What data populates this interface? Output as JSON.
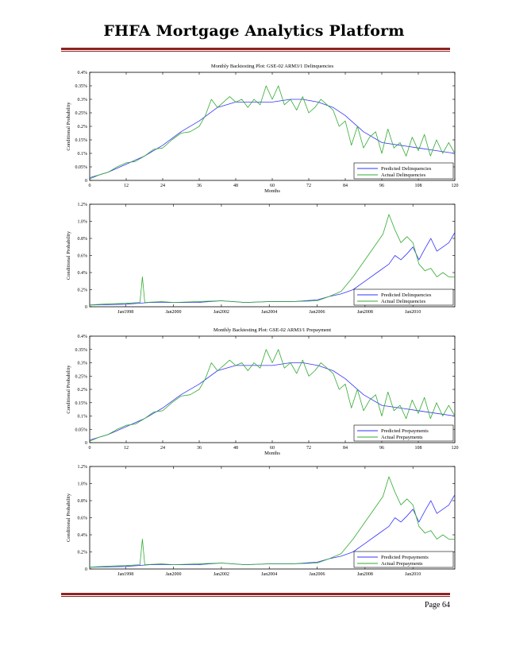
{
  "page": {
    "title": "FHFA Mortgage Analytics Platform",
    "page_number": "Page 64",
    "rule_color": "#8e2323"
  },
  "chart_data": [
    {
      "type": "line",
      "title": "Monthly Backtesting Plot: GSE-02 ARM3/1 Delinquencies",
      "xlabel": "Months",
      "ylabel": "Conditional Probability",
      "xlim": [
        0,
        120
      ],
      "ylim": [
        0,
        0.4
      ],
      "xticks": [
        0,
        12,
        24,
        36,
        48,
        60,
        72,
        84,
        96,
        108,
        120
      ],
      "yticks": [
        0,
        0.05,
        0.1,
        0.15,
        0.2,
        0.25,
        0.3,
        0.35,
        0.4
      ],
      "ytick_labels": [
        "0",
        "0.05%",
        "0.1%",
        "0.15%",
        "0.2%",
        "0.25%",
        "0.3%",
        "0.35%",
        "0.4%"
      ],
      "legend_position": "bottom-right",
      "series": [
        {
          "name": "Predicted Delinquencies",
          "color": "#3333ff",
          "x": [
            0,
            6,
            12,
            18,
            24,
            30,
            36,
            42,
            48,
            54,
            60,
            66,
            70,
            75,
            80,
            84,
            90,
            96,
            102,
            108,
            114,
            120
          ],
          "values": [
            0.01,
            0.03,
            0.06,
            0.09,
            0.13,
            0.18,
            0.22,
            0.27,
            0.29,
            0.29,
            0.29,
            0.3,
            0.3,
            0.29,
            0.27,
            0.24,
            0.18,
            0.14,
            0.13,
            0.12,
            0.11,
            0.1
          ]
        },
        {
          "name": "Actual Delinquencies",
          "color": "#33aa33",
          "x": [
            0,
            3,
            6,
            9,
            12,
            15,
            18,
            21,
            24,
            27,
            30,
            33,
            36,
            38,
            40,
            42,
            44,
            46,
            48,
            50,
            52,
            54,
            56,
            58,
            60,
            62,
            64,
            66,
            68,
            70,
            72,
            74,
            76,
            78,
            80,
            82,
            84,
            86,
            88,
            90,
            92,
            94,
            96,
            98,
            100,
            102,
            104,
            106,
            108,
            110,
            112,
            114,
            116,
            118,
            120
          ],
          "values": [
            0.005,
            0.02,
            0.03,
            0.05,
            0.065,
            0.07,
            0.09,
            0.115,
            0.12,
            0.15,
            0.175,
            0.18,
            0.2,
            0.24,
            0.3,
            0.27,
            0.29,
            0.31,
            0.29,
            0.3,
            0.27,
            0.3,
            0.28,
            0.35,
            0.3,
            0.35,
            0.28,
            0.3,
            0.26,
            0.31,
            0.25,
            0.27,
            0.3,
            0.28,
            0.26,
            0.2,
            0.22,
            0.13,
            0.2,
            0.12,
            0.16,
            0.18,
            0.1,
            0.19,
            0.12,
            0.14,
            0.09,
            0.16,
            0.11,
            0.17,
            0.09,
            0.15,
            0.1,
            0.14,
            0.1
          ]
        }
      ]
    },
    {
      "type": "line",
      "title": "",
      "xlabel": "",
      "ylabel": "Conditional Probability",
      "xlim": [
        1996.5,
        2011.75
      ],
      "ylim": [
        0,
        1.2
      ],
      "xticks": [
        1998,
        2000,
        2002,
        2004,
        2006,
        2008,
        2010
      ],
      "xtick_labels": [
        "Jan1998",
        "Jan2000",
        "Jan2002",
        "Jan2004",
        "Jan2006",
        "Jan2008",
        "Jan2010"
      ],
      "yticks": [
        0,
        0.2,
        0.4,
        0.6,
        0.8,
        1.0,
        1.2
      ],
      "ytick_labels": [
        "0",
        "0.2%",
        "0.4%",
        "0.6%",
        "0.8%",
        "1.0%",
        "1.2%"
      ],
      "legend_position": "bottom-right",
      "series": [
        {
          "name": "Predicted Delinquencies",
          "color": "#3333ff",
          "x": [
            1996.5,
            1998,
            1999,
            2000,
            2001,
            2002,
            2003,
            2004,
            2005,
            2006,
            2006.5,
            2007,
            2007.5,
            2008,
            2008.5,
            2009,
            2009.25,
            2009.5,
            2009.75,
            2010,
            2010.25,
            2010.5,
            2010.75,
            2011,
            2011.25,
            2011.5,
            2011.75
          ],
          "values": [
            0.02,
            0.03,
            0.05,
            0.05,
            0.05,
            0.07,
            0.05,
            0.06,
            0.06,
            0.08,
            0.12,
            0.15,
            0.2,
            0.3,
            0.4,
            0.5,
            0.6,
            0.55,
            0.62,
            0.7,
            0.55,
            0.68,
            0.8,
            0.65,
            0.7,
            0.75,
            0.87
          ]
        },
        {
          "name": "Actual Delinquencies",
          "color": "#33aa33",
          "x": [
            1996.5,
            1997,
            1998,
            1998.6,
            1998.7,
            1998.8,
            1999.5,
            2000,
            2001,
            2002,
            2003,
            2004,
            2005,
            2006,
            2006.5,
            2007,
            2007.5,
            2008,
            2008.5,
            2008.75,
            2009,
            2009.25,
            2009.5,
            2009.75,
            2010,
            2010.25,
            2010.5,
            2010.75,
            2011,
            2011.25,
            2011.5,
            2011.75
          ],
          "values": [
            0.02,
            0.03,
            0.04,
            0.05,
            0.35,
            0.05,
            0.06,
            0.05,
            0.06,
            0.07,
            0.05,
            0.06,
            0.06,
            0.07,
            0.12,
            0.18,
            0.35,
            0.55,
            0.75,
            0.85,
            1.08,
            0.9,
            0.75,
            0.82,
            0.75,
            0.5,
            0.42,
            0.45,
            0.35,
            0.4,
            0.35,
            0.35
          ]
        }
      ]
    },
    {
      "type": "line",
      "title": "Monthly Backtesting Plot: GSE-02 ARM3/1 Prepayment",
      "xlabel": "Months",
      "ylabel": "Conditional Probability",
      "xlim": [
        0,
        120
      ],
      "ylim": [
        0,
        0.4
      ],
      "xticks": [
        0,
        12,
        24,
        36,
        48,
        60,
        72,
        84,
        96,
        108,
        120
      ],
      "yticks": [
        0,
        0.05,
        0.1,
        0.15,
        0.2,
        0.25,
        0.3,
        0.35,
        0.4
      ],
      "ytick_labels": [
        "0",
        "0.05%",
        "0.1%",
        "0.15%",
        "0.2%",
        "0.25%",
        "0.3%",
        "0.35%",
        "0.4%"
      ],
      "legend_position": "bottom-right",
      "series": [
        {
          "name": "Predicted Prepayments",
          "color": "#3333ff",
          "x": [
            0,
            6,
            12,
            18,
            24,
            30,
            36,
            42,
            48,
            54,
            60,
            66,
            70,
            75,
            80,
            84,
            90,
            96,
            102,
            108,
            114,
            120
          ],
          "values": [
            0.01,
            0.03,
            0.06,
            0.09,
            0.13,
            0.18,
            0.22,
            0.27,
            0.29,
            0.29,
            0.29,
            0.3,
            0.3,
            0.29,
            0.27,
            0.24,
            0.18,
            0.14,
            0.13,
            0.12,
            0.11,
            0.1
          ]
        },
        {
          "name": "Actual Prepayments",
          "color": "#33aa33",
          "x": [
            0,
            3,
            6,
            9,
            12,
            15,
            18,
            21,
            24,
            27,
            30,
            33,
            36,
            38,
            40,
            42,
            44,
            46,
            48,
            50,
            52,
            54,
            56,
            58,
            60,
            62,
            64,
            66,
            68,
            70,
            72,
            74,
            76,
            78,
            80,
            82,
            84,
            86,
            88,
            90,
            92,
            94,
            96,
            98,
            100,
            102,
            104,
            106,
            108,
            110,
            112,
            114,
            116,
            118,
            120
          ],
          "values": [
            0.005,
            0.02,
            0.03,
            0.05,
            0.065,
            0.07,
            0.09,
            0.115,
            0.12,
            0.15,
            0.175,
            0.18,
            0.2,
            0.24,
            0.3,
            0.27,
            0.29,
            0.31,
            0.29,
            0.3,
            0.27,
            0.3,
            0.28,
            0.35,
            0.3,
            0.35,
            0.28,
            0.3,
            0.26,
            0.31,
            0.25,
            0.27,
            0.3,
            0.28,
            0.26,
            0.2,
            0.22,
            0.13,
            0.2,
            0.12,
            0.16,
            0.18,
            0.1,
            0.19,
            0.12,
            0.14,
            0.09,
            0.16,
            0.11,
            0.17,
            0.09,
            0.15,
            0.1,
            0.14,
            0.1
          ]
        }
      ]
    },
    {
      "type": "line",
      "title": "",
      "xlabel": "",
      "ylabel": "Conditional Probability",
      "xlim": [
        1996.5,
        2011.75
      ],
      "ylim": [
        0,
        1.2
      ],
      "xticks": [
        1998,
        2000,
        2002,
        2004,
        2006,
        2008,
        2010
      ],
      "xtick_labels": [
        "Jan1998",
        "Jan2000",
        "Jan2002",
        "Jan2004",
        "Jan2006",
        "Jan2008",
        "Jan2010"
      ],
      "yticks": [
        0,
        0.2,
        0.4,
        0.6,
        0.8,
        1.0,
        1.2
      ],
      "ytick_labels": [
        "0",
        "0.2%",
        "0.4%",
        "0.6%",
        "0.8%",
        "1.0%",
        "1.2%"
      ],
      "legend_position": "bottom-right",
      "series": [
        {
          "name": "Predicted Prepayments",
          "color": "#3333ff",
          "x": [
            1996.5,
            1998,
            1999,
            2000,
            2001,
            2002,
            2003,
            2004,
            2005,
            2006,
            2006.5,
            2007,
            2007.5,
            2008,
            2008.5,
            2009,
            2009.25,
            2009.5,
            2009.75,
            2010,
            2010.25,
            2010.5,
            2010.75,
            2011,
            2011.25,
            2011.5,
            2011.75
          ],
          "values": [
            0.02,
            0.03,
            0.05,
            0.05,
            0.05,
            0.07,
            0.05,
            0.06,
            0.06,
            0.08,
            0.12,
            0.15,
            0.2,
            0.3,
            0.4,
            0.5,
            0.6,
            0.55,
            0.62,
            0.7,
            0.55,
            0.68,
            0.8,
            0.65,
            0.7,
            0.75,
            0.87
          ]
        },
        {
          "name": "Actual Prepayments",
          "color": "#33aa33",
          "x": [
            1996.5,
            1997,
            1998,
            1998.6,
            1998.7,
            1998.8,
            1999.5,
            2000,
            2001,
            2002,
            2003,
            2004,
            2005,
            2006,
            2006.5,
            2007,
            2007.5,
            2008,
            2008.5,
            2008.75,
            2009,
            2009.25,
            2009.5,
            2009.75,
            2010,
            2010.25,
            2010.5,
            2010.75,
            2011,
            2011.25,
            2011.5,
            2011.75
          ],
          "values": [
            0.02,
            0.03,
            0.04,
            0.05,
            0.35,
            0.05,
            0.06,
            0.05,
            0.06,
            0.07,
            0.05,
            0.06,
            0.06,
            0.07,
            0.12,
            0.18,
            0.35,
            0.55,
            0.75,
            0.85,
            1.08,
            0.9,
            0.75,
            0.82,
            0.75,
            0.5,
            0.42,
            0.45,
            0.35,
            0.4,
            0.35,
            0.35
          ]
        }
      ]
    }
  ]
}
